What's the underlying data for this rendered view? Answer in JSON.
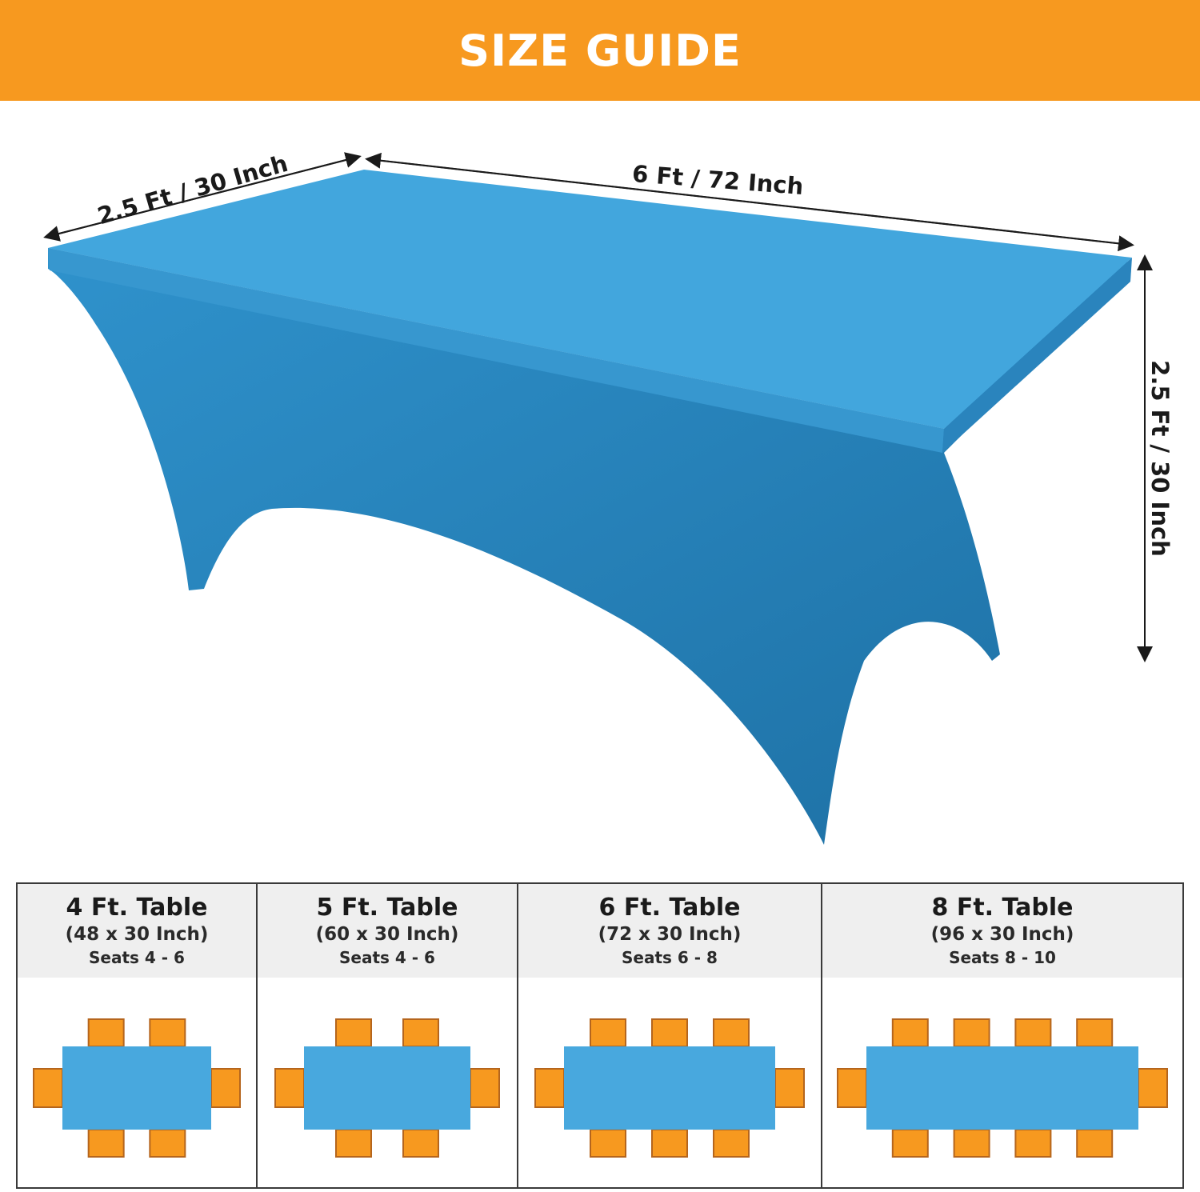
{
  "banner": {
    "title": "SIZE GUIDE"
  },
  "colors": {
    "banner": "#f7991f",
    "tablecloth": "#2a8ac4",
    "tablecloth_top": "#42a6dd",
    "chair": "#f7991f",
    "chair_edge": "#b5651d"
  },
  "dimensions": {
    "width_label": "2.5 Ft / 30 Inch",
    "length_label": "6 Ft / 72 Inch",
    "height_label": "2.5 Ft / 30 Inch"
  },
  "sizes": [
    {
      "title": "4 Ft. Table",
      "dims": "(48 x 30 Inch)",
      "seats": "Seats 4 - 6",
      "side_chairs": 2
    },
    {
      "title": "5 Ft. Table",
      "dims": "(60 x 30 Inch)",
      "seats": "Seats 4 - 6",
      "side_chairs": 2
    },
    {
      "title": "6 Ft. Table",
      "dims": "(72 x 30 Inch)",
      "seats": "Seats 6 - 8",
      "side_chairs": 3
    },
    {
      "title": "8 Ft. Table",
      "dims": "(96 x 30 Inch)",
      "seats": "Seats 8 - 10",
      "side_chairs": 4
    }
  ]
}
